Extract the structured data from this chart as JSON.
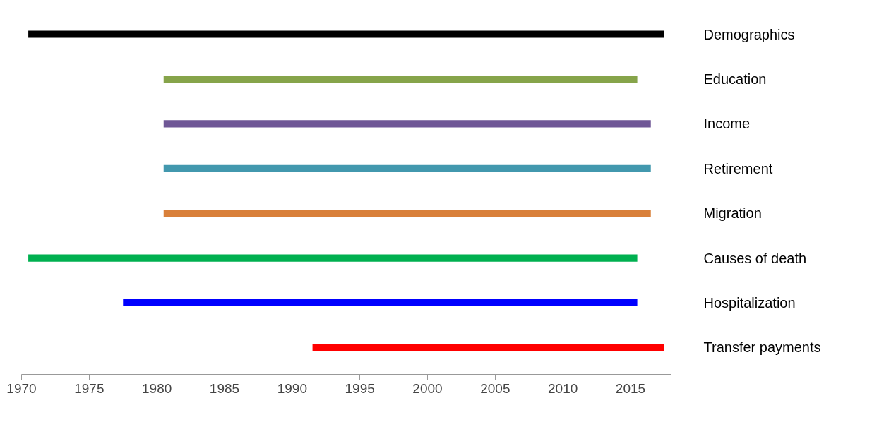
{
  "chart_data": {
    "type": "bar",
    "orientation": "horizontal",
    "grid": false,
    "categories": [
      "Demographics",
      "Education",
      "Income",
      "Retirement",
      "Migration",
      "Causes of death",
      "Hospitalization",
      "Transfer payments"
    ],
    "base": [
      1970.5,
      1980.5,
      1980.5,
      1980.5,
      1980.5,
      1970.5,
      1977.5,
      1991.5
    ],
    "values": [
      47,
      35,
      36,
      36,
      36,
      45,
      38,
      26
    ],
    "colors": [
      "#000000",
      "#86a44a",
      "#6f5796",
      "#4298ae",
      "#d9803a",
      "#00b050",
      "#0000ff",
      "#ff0000"
    ],
    "xlim": [
      1970,
      2018
    ],
    "xticks": [
      1970,
      1975,
      1980,
      1985,
      1990,
      1995,
      2000,
      2005,
      2010,
      2015
    ]
  }
}
